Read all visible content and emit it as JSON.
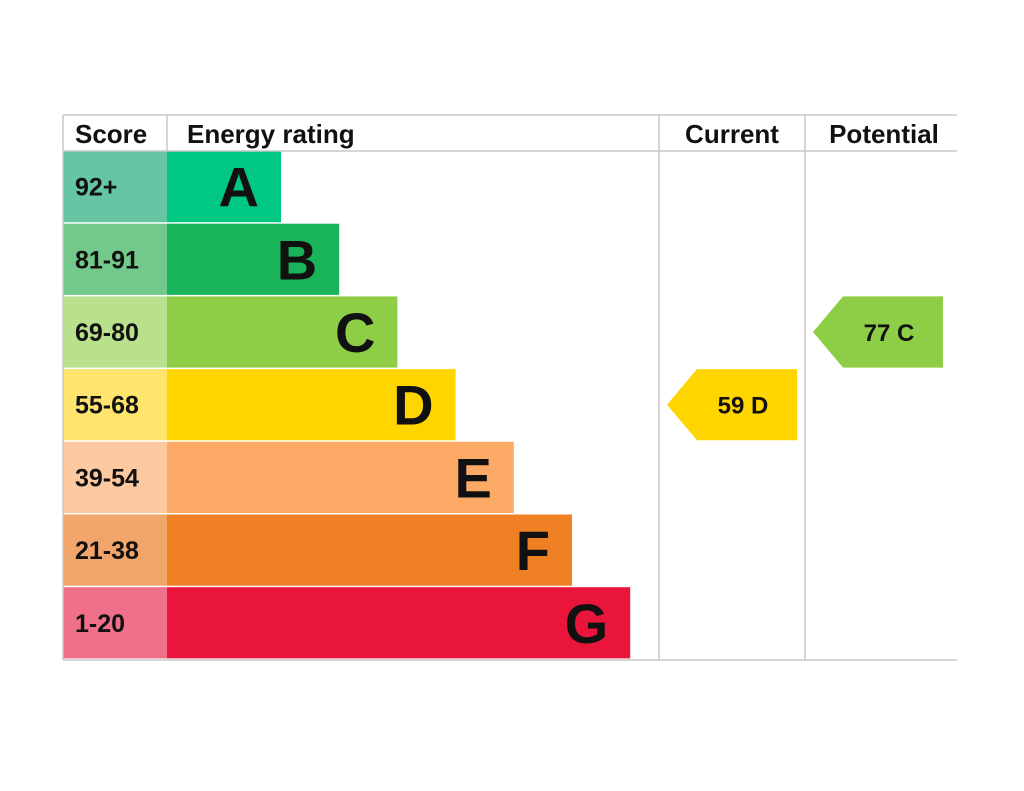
{
  "headers": {
    "score": "Score",
    "rating": "Energy rating",
    "current": "Current",
    "potential": "Potential"
  },
  "chart_data": {
    "type": "bar",
    "bands": [
      {
        "letter": "A",
        "range": "92+",
        "min": 92,
        "max": 100,
        "color": "#00c781",
        "score_color": "#66c5a2"
      },
      {
        "letter": "B",
        "range": "81-91",
        "min": 81,
        "max": 91,
        "color": "#19b459",
        "score_color": "#72c98b"
      },
      {
        "letter": "C",
        "range": "69-80",
        "min": 69,
        "max": 80,
        "color": "#8dce46",
        "score_color": "#b9e08c"
      },
      {
        "letter": "D",
        "range": "55-68",
        "min": 55,
        "max": 68,
        "color": "#ffd500",
        "score_color": "#ffe46e"
      },
      {
        "letter": "E",
        "range": "39-54",
        "min": 39,
        "max": 54,
        "color": "#fcaa65",
        "score_color": "#fdc9a1"
      },
      {
        "letter": "F",
        "range": "21-38",
        "min": 21,
        "max": 38,
        "color": "#ef8023",
        "score_color": "#f2a56a"
      },
      {
        "letter": "G",
        "range": "1-20",
        "min": 1,
        "max": 20,
        "color": "#e9153b",
        "score_color": "#ee7189"
      }
    ],
    "current": {
      "score": 59,
      "band": "D",
      "label": "59  D",
      "color": "#ffd500"
    },
    "potential": {
      "score": 77,
      "band": "C",
      "label": "77  C",
      "color": "#8dce46"
    }
  }
}
